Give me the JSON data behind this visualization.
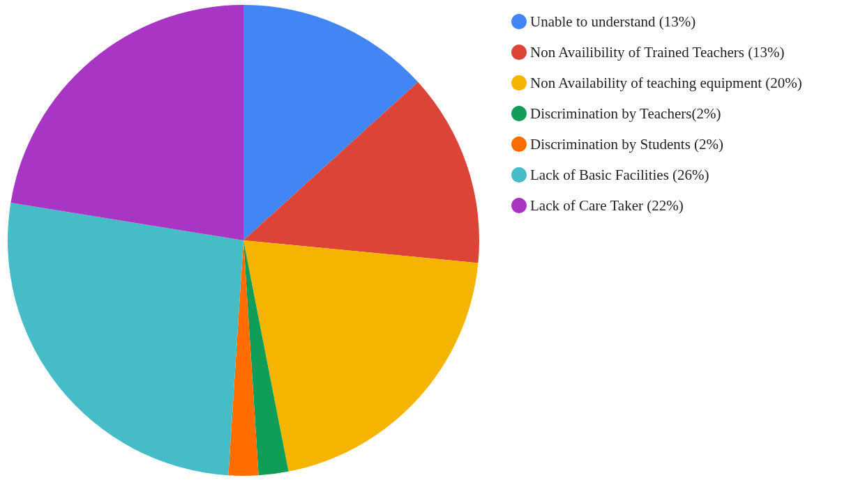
{
  "chart_data": {
    "type": "pie",
    "categories": [
      "Unable to understand (13%)",
      "Non Availibility of Trained Teachers (13%)",
      "Non Availability of teaching equipment (20%)",
      "Discrimination by Teachers(2%)",
      "Discrimination by Students (2%)",
      "Lack of Basic Facilities (26%)",
      "Lack of Care Taker (22%)"
    ],
    "values": [
      13,
      13,
      20,
      2,
      2,
      26,
      22
    ],
    "colors": [
      "#4285f4",
      "#db4437",
      "#f4b400",
      "#0f9d58",
      "#ff6d01",
      "#46bdc6",
      "#a835c4"
    ],
    "legend": "right"
  }
}
